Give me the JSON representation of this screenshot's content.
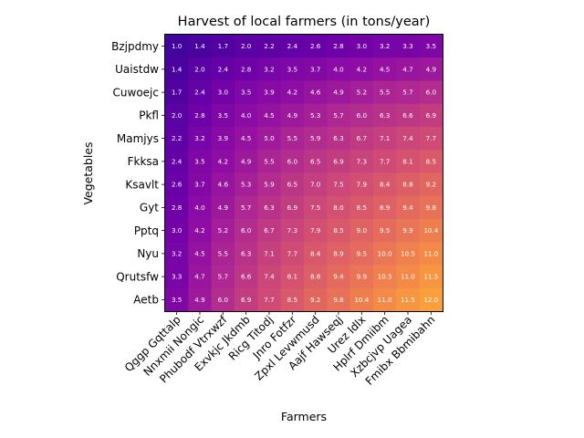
{
  "chart_data": {
    "type": "heatmap",
    "title": "Harvest of local farmers (in tons/year)",
    "xlabel": "Farmers",
    "ylabel": "Vegetables",
    "colormap": "plasma",
    "value_range": [
      1.0,
      12.0
    ],
    "grid": false,
    "legend": "none",
    "x_categories": [
      "Qggp Gqttalp",
      "Nnxmii Nongic",
      "Phubodf Vtrxwzf",
      "Exvkjc Jkdmb",
      "Ricg Titodj",
      "Jnro Fotfzr",
      "Zpxl Levwmusd",
      "Aajf Hawseqj",
      "Urez Idlx",
      "Hplrf Dmiibm",
      "Xzbcjvp Uagea",
      "Fmibx Bbmibahn"
    ],
    "y_categories": [
      "Bzjpdmy",
      "Uaistdw",
      "Cuwoejc",
      "Pkfl",
      "Mamjys",
      "Fkksa",
      "Ksavlt",
      "Gyt",
      "Pptq",
      "Nyu",
      "Qrutsfw",
      "Aetb"
    ],
    "values": [
      [
        1.0,
        1.4,
        1.7,
        2.0,
        2.2,
        2.4,
        2.6,
        2.8,
        3.0,
        3.2,
        3.3,
        3.5
      ],
      [
        1.4,
        2.0,
        2.4,
        2.8,
        3.2,
        3.5,
        3.7,
        4.0,
        4.2,
        4.5,
        4.7,
        4.9
      ],
      [
        1.7,
        2.4,
        3.0,
        3.5,
        3.9,
        4.2,
        4.6,
        4.9,
        5.2,
        5.5,
        5.7,
        6.0
      ],
      [
        2.0,
        2.8,
        3.5,
        4.0,
        4.5,
        4.9,
        5.3,
        5.7,
        6.0,
        6.3,
        6.6,
        6.9
      ],
      [
        2.2,
        3.2,
        3.9,
        4.5,
        5.0,
        5.5,
        5.9,
        6.3,
        6.7,
        7.1,
        7.4,
        7.7
      ],
      [
        2.4,
        3.5,
        4.2,
        4.9,
        5.5,
        6.0,
        6.5,
        6.9,
        7.3,
        7.7,
        8.1,
        8.5
      ],
      [
        2.6,
        3.7,
        4.6,
        5.3,
        5.9,
        6.5,
        7.0,
        7.5,
        7.9,
        8.4,
        8.8,
        9.2
      ],
      [
        2.8,
        4.0,
        4.9,
        5.7,
        6.3,
        6.9,
        7.5,
        8.0,
        8.5,
        8.9,
        9.4,
        9.8
      ],
      [
        3.0,
        4.2,
        5.2,
        6.0,
        6.7,
        7.3,
        7.9,
        8.5,
        9.0,
        9.5,
        9.9,
        10.4
      ],
      [
        3.2,
        4.5,
        5.5,
        6.3,
        7.1,
        7.7,
        8.4,
        8.9,
        9.5,
        10.0,
        10.5,
        11.0
      ],
      [
        3.3,
        4.7,
        5.7,
        6.6,
        7.4,
        8.1,
        8.8,
        9.4,
        9.9,
        10.5,
        11.0,
        11.5
      ],
      [
        3.5,
        4.9,
        6.0,
        6.9,
        7.7,
        8.5,
        9.2,
        9.8,
        10.4,
        11.0,
        11.5,
        12.0
      ]
    ]
  }
}
